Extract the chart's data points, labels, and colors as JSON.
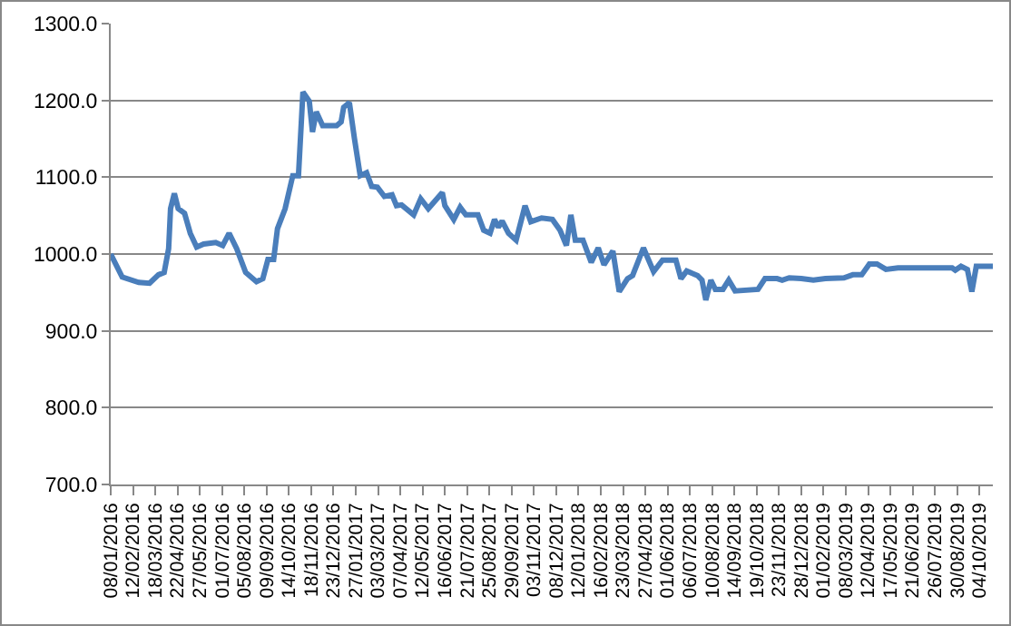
{
  "chart_data": {
    "type": "line",
    "grid": "y",
    "legend": false,
    "marker": "none",
    "line_style": "solid",
    "x": [
      "2016-01-08",
      "2016-01-26",
      "2016-02-21",
      "2016-03-09",
      "2016-03-23",
      "2016-04-01",
      "2016-04-08",
      "2016-04-11",
      "2016-04-17",
      "2016-04-23",
      "2016-05-03",
      "2016-05-12",
      "2016-05-22",
      "2016-06-02",
      "2016-06-21",
      "2016-07-02",
      "2016-07-12",
      "2016-07-24",
      "2016-08-07",
      "2016-08-24",
      "2016-09-03",
      "2016-09-11",
      "2016-09-20",
      "2016-09-26",
      "2016-10-08",
      "2016-10-20",
      "2016-10-29",
      "2016-11-05",
      "2016-11-15",
      "2016-11-20",
      "2016-11-26",
      "2016-12-06",
      "2016-12-28",
      "2017-01-04",
      "2017-01-08",
      "2017-01-17",
      "2017-01-25",
      "2017-02-03",
      "2017-02-13",
      "2017-02-21",
      "2017-03-02",
      "2017-03-13",
      "2017-03-25",
      "2017-04-01",
      "2017-04-09",
      "2017-04-28",
      "2017-05-09",
      "2017-05-21",
      "2017-06-12",
      "2017-06-16",
      "2017-06-30",
      "2017-07-10",
      "2017-07-19",
      "2017-08-07",
      "2017-08-16",
      "2017-08-26",
      "2017-09-02",
      "2017-09-08",
      "2017-09-14",
      "2017-09-24",
      "2017-10-06",
      "2017-10-20",
      "2017-10-29",
      "2017-11-15",
      "2017-12-02",
      "2017-12-14",
      "2017-12-24",
      "2017-12-31",
      "2018-01-07",
      "2018-01-19",
      "2018-02-01",
      "2018-02-12",
      "2018-02-21",
      "2018-03-07",
      "2018-03-17",
      "2018-03-30",
      "2018-04-07",
      "2018-04-24",
      "2018-05-10",
      "2018-05-24",
      "2018-06-14",
      "2018-06-22",
      "2018-07-01",
      "2018-07-18",
      "2018-07-25",
      "2018-07-31",
      "2018-08-08",
      "2018-08-15",
      "2018-08-27",
      "2018-09-05",
      "2018-09-15",
      "2018-10-21",
      "2018-11-01",
      "2018-11-20",
      "2018-11-28",
      "2018-12-09",
      "2018-12-28",
      "2019-01-16",
      "2019-02-04",
      "2019-03-05",
      "2019-03-19",
      "2019-04-02",
      "2019-04-14",
      "2019-04-26",
      "2019-05-10",
      "2019-05-29",
      "2019-08-22",
      "2019-08-27",
      "2019-09-05",
      "2019-09-15",
      "2019-09-22",
      "2019-09-29",
      "2019-10-25"
    ],
    "series": [
      {
        "color": "#4a7ebb",
        "values": [
          1000,
          970,
          963,
          962,
          973,
          976,
          1007,
          1059,
          1079,
          1059,
          1053,
          1027,
          1009,
          1013,
          1015,
          1011,
          1027,
          1007,
          976,
          964,
          968,
          993,
          993,
          1033,
          1059,
          1102,
          1102,
          1211,
          1199,
          1159,
          1185,
          1167,
          1167,
          1172,
          1191,
          1197,
          1150,
          1102,
          1106,
          1088,
          1087,
          1075,
          1077,
          1063,
          1064,
          1051,
          1072,
          1059,
          1080,
          1063,
          1045,
          1061,
          1051,
          1051,
          1031,
          1027,
          1045,
          1035,
          1043,
          1027,
          1018,
          1063,
          1042,
          1047,
          1045,
          1031,
          1011,
          1051,
          1018,
          1018,
          989,
          1008,
          986,
          1004,
          951,
          968,
          972,
          1008,
          977,
          992,
          992,
          968,
          978,
          972,
          966,
          940,
          966,
          954,
          954,
          966,
          952,
          954,
          968,
          968,
          966,
          969,
          968,
          966,
          968,
          969,
          973,
          973,
          987,
          987,
          980,
          982,
          982,
          979,
          984,
          980,
          951,
          984,
          984
        ]
      }
    ],
    "ylim": [
      700,
      1300
    ],
    "yticks": [
      {
        "value": 700,
        "label": "700.0"
      },
      {
        "value": 800,
        "label": "800.0"
      },
      {
        "value": 900,
        "label": "900.0"
      },
      {
        "value": 1000,
        "label": "1000.0"
      },
      {
        "value": 1100,
        "label": "1100.0"
      },
      {
        "value": 1200,
        "label": "1200.0"
      },
      {
        "value": 1300,
        "label": "1300.0"
      }
    ],
    "xlim": [
      "2016-01-08",
      "2019-10-25"
    ],
    "xticks": [
      {
        "value": "2016-01-08",
        "label": "08/01/2016"
      },
      {
        "value": "2016-02-12",
        "label": "12/02/2016"
      },
      {
        "value": "2016-03-18",
        "label": "18/03/2016"
      },
      {
        "value": "2016-04-22",
        "label": "22/04/2016"
      },
      {
        "value": "2016-05-27",
        "label": "27/05/2016"
      },
      {
        "value": "2016-07-01",
        "label": "01/07/2016"
      },
      {
        "value": "2016-08-05",
        "label": "05/08/2016"
      },
      {
        "value": "2016-09-09",
        "label": "09/09/2016"
      },
      {
        "value": "2016-10-14",
        "label": "14/10/2016"
      },
      {
        "value": "2016-11-18",
        "label": "18/11/2016"
      },
      {
        "value": "2016-12-23",
        "label": "23/12/2016"
      },
      {
        "value": "2017-01-27",
        "label": "27/01/2017"
      },
      {
        "value": "2017-03-03",
        "label": "03/03/2017"
      },
      {
        "value": "2017-04-07",
        "label": "07/04/2017"
      },
      {
        "value": "2017-05-12",
        "label": "12/05/2017"
      },
      {
        "value": "2017-06-16",
        "label": "16/06/2017"
      },
      {
        "value": "2017-07-21",
        "label": "21/07/2017"
      },
      {
        "value": "2017-08-25",
        "label": "25/08/2017"
      },
      {
        "value": "2017-09-29",
        "label": "29/09/2017"
      },
      {
        "value": "2017-11-03",
        "label": "03/11/2017"
      },
      {
        "value": "2017-12-08",
        "label": "08/12/2017"
      },
      {
        "value": "2018-01-12",
        "label": "12/01/2018"
      },
      {
        "value": "2018-02-16",
        "label": "16/02/2018"
      },
      {
        "value": "2018-03-23",
        "label": "23/03/2018"
      },
      {
        "value": "2018-04-27",
        "label": "27/04/2018"
      },
      {
        "value": "2018-06-01",
        "label": "01/06/2018"
      },
      {
        "value": "2018-07-06",
        "label": "06/07/2018"
      },
      {
        "value": "2018-08-10",
        "label": "10/08/2018"
      },
      {
        "value": "2018-09-14",
        "label": "14/09/2018"
      },
      {
        "value": "2018-10-19",
        "label": "19/10/2018"
      },
      {
        "value": "2018-11-23",
        "label": "23/11/2018"
      },
      {
        "value": "2018-12-28",
        "label": "28/12/2018"
      },
      {
        "value": "2019-02-01",
        "label": "01/02/2019"
      },
      {
        "value": "2019-03-08",
        "label": "08/03/2019"
      },
      {
        "value": "2019-04-12",
        "label": "12/04/2019"
      },
      {
        "value": "2019-05-17",
        "label": "17/05/2019"
      },
      {
        "value": "2019-06-21",
        "label": "21/06/2019"
      },
      {
        "value": "2019-07-26",
        "label": "26/07/2019"
      },
      {
        "value": "2019-08-30",
        "label": "30/08/2019"
      },
      {
        "value": "2019-10-04",
        "label": "04/10/2019"
      }
    ]
  }
}
